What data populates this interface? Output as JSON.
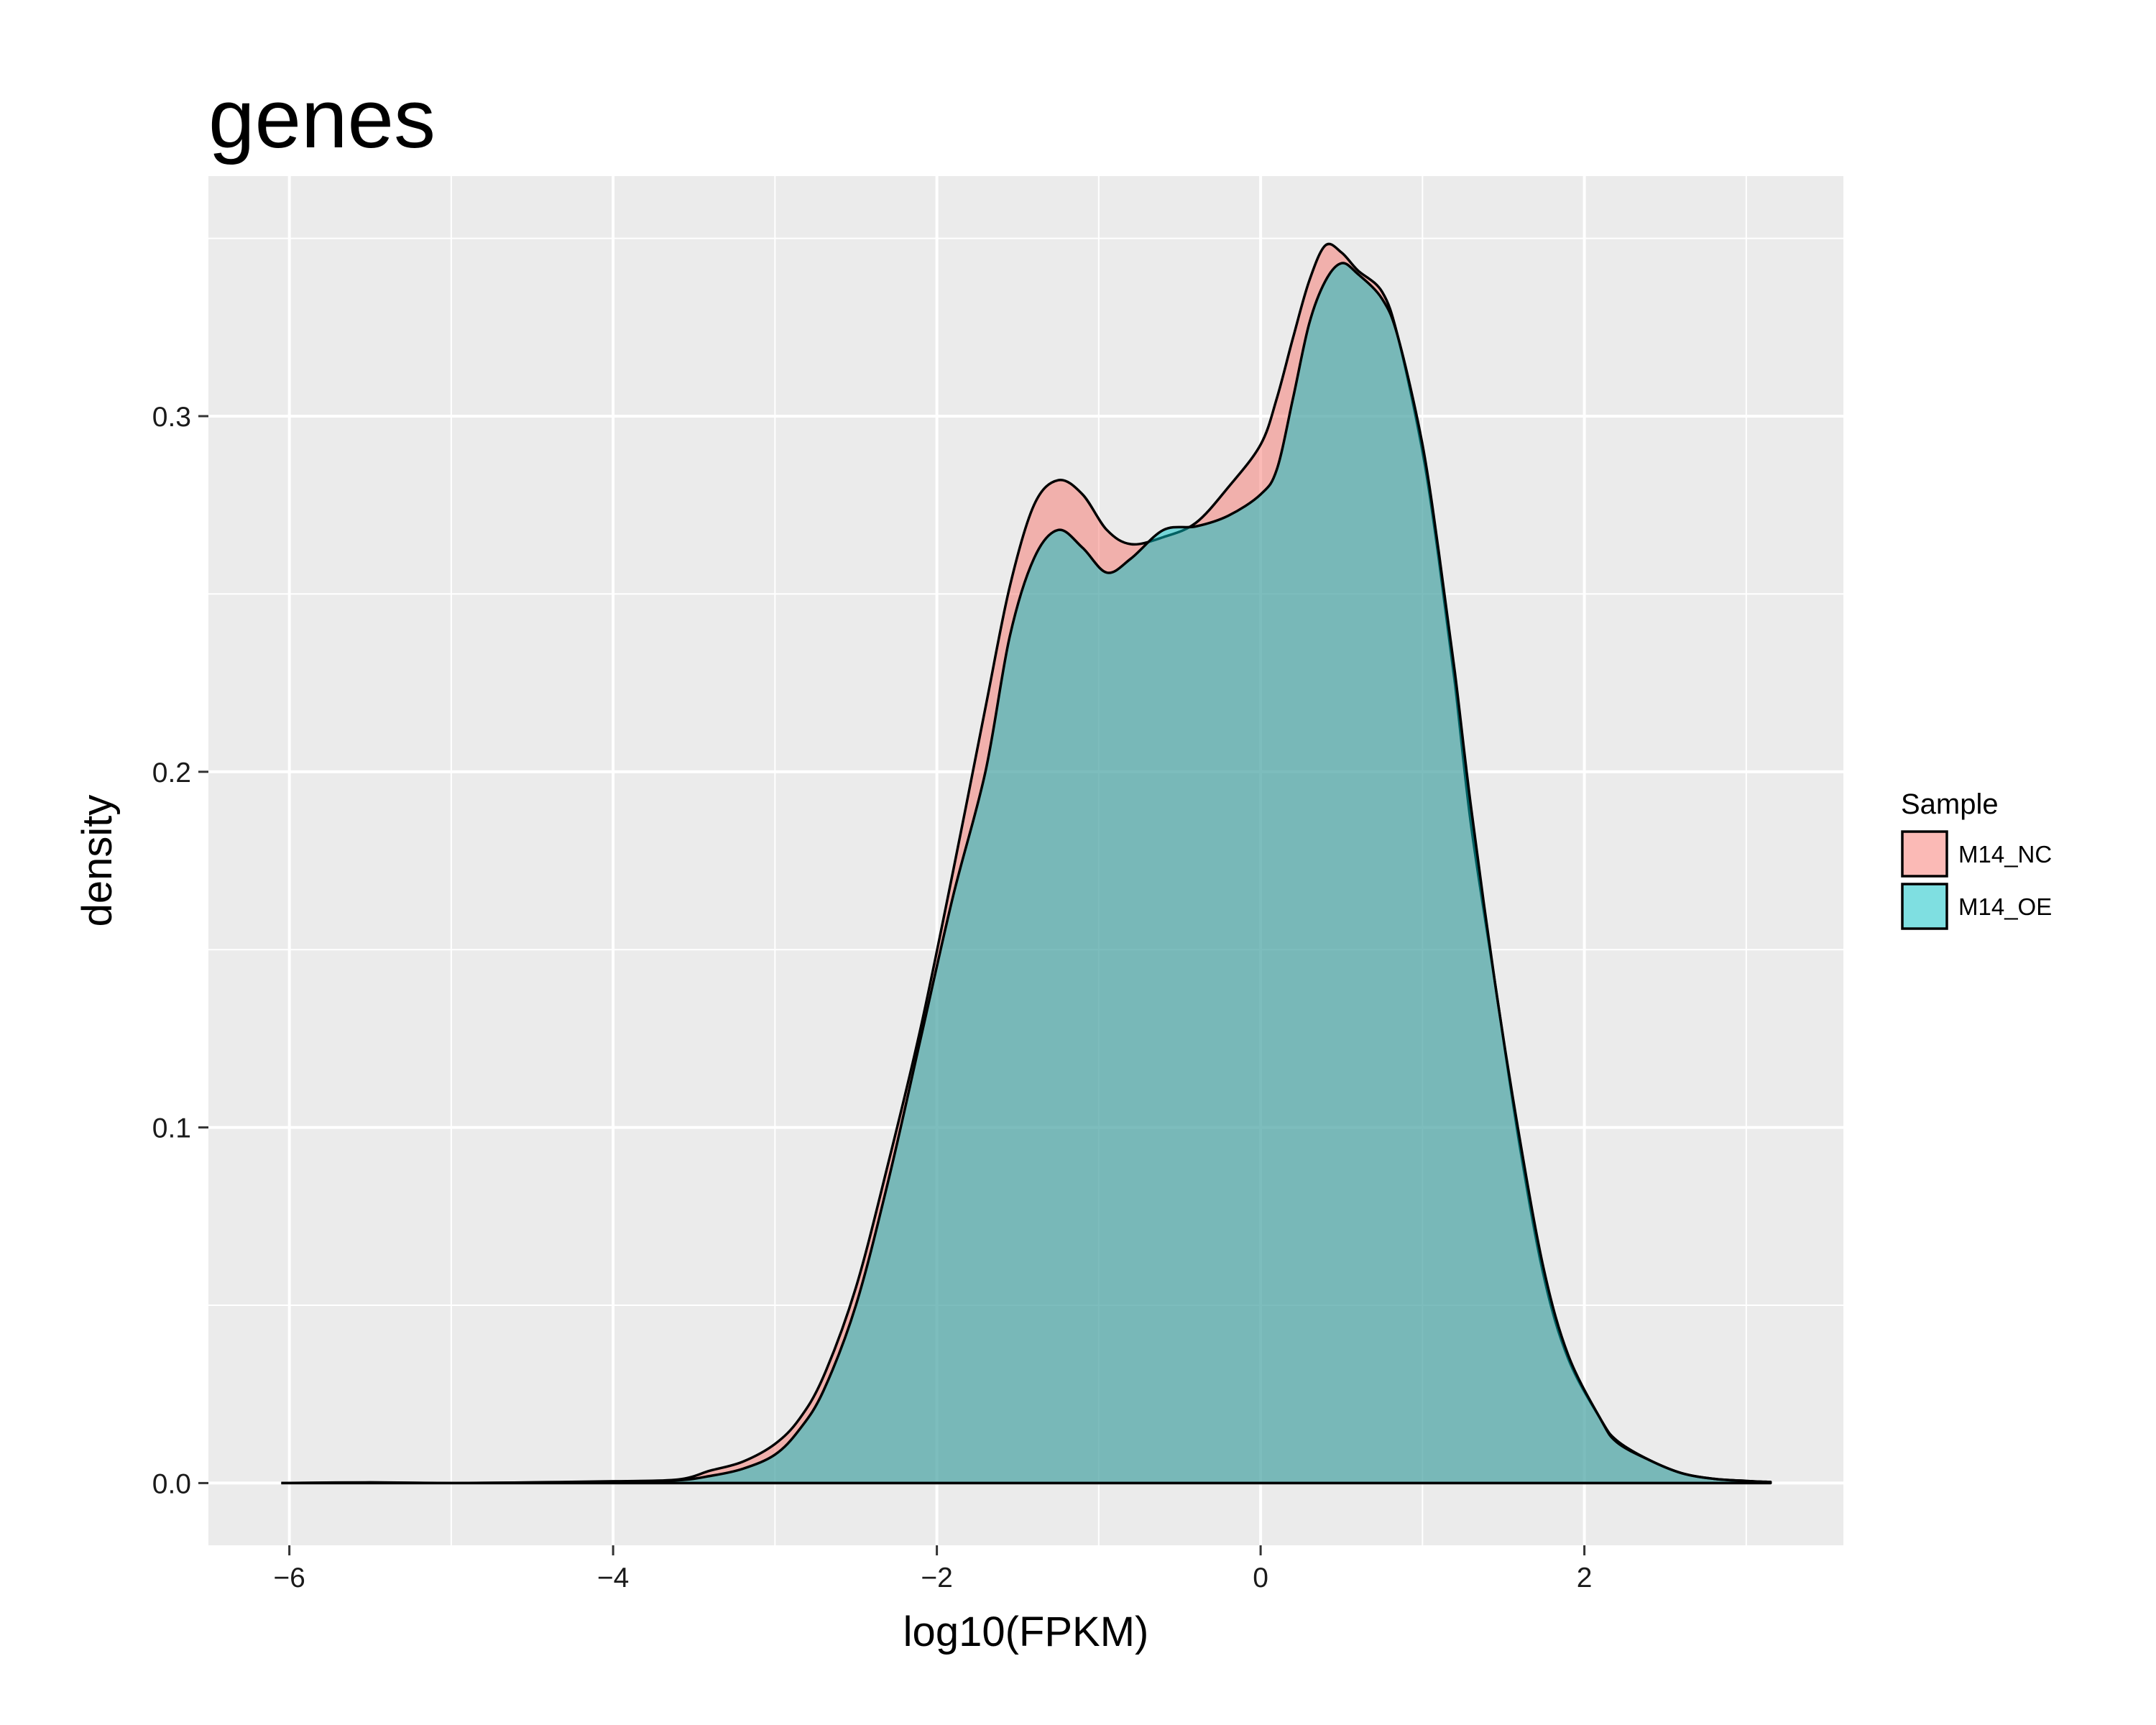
{
  "chart_data": {
    "type": "area",
    "title": "genes",
    "xlabel": "log10(FPKM)",
    "ylabel": "density",
    "xlim": [
      -6.5,
      3.6
    ],
    "ylim": [
      -0.0175,
      0.3675
    ],
    "x_ticks": [
      -6,
      -4,
      -2,
      0,
      2
    ],
    "x_tick_labels": [
      "−6",
      "−4",
      "−2",
      "0",
      "2"
    ],
    "y_ticks": [
      0.0,
      0.1,
      0.2,
      0.3
    ],
    "y_tick_labels": [
      "0.0",
      "0.1",
      "0.2",
      "0.3"
    ],
    "grid": true,
    "legend": {
      "title": "Sample",
      "position": "right"
    },
    "colors": {
      "panel_background": "#EBEBEB",
      "grid": "#FFFFFF",
      "outline": "#000000"
    },
    "series": [
      {
        "name": "M14_NC",
        "fill": "#F8766D",
        "fill_opacity": 0.5,
        "points": [
          [
            -6.05,
            0.0
          ],
          [
            -5.5,
            0.0002
          ],
          [
            -5.0,
            0.0
          ],
          [
            -4.5,
            0.0002
          ],
          [
            -4.0,
            0.0005
          ],
          [
            -3.6,
            0.001
          ],
          [
            -3.4,
            0.0035
          ],
          [
            -3.2,
            0.006
          ],
          [
            -3.0,
            0.011
          ],
          [
            -2.85,
            0.018
          ],
          [
            -2.7,
            0.03
          ],
          [
            -2.5,
            0.055
          ],
          [
            -2.3,
            0.09
          ],
          [
            -2.1,
            0.128
          ],
          [
            -1.9,
            0.172
          ],
          [
            -1.7,
            0.218
          ],
          [
            -1.55,
            0.252
          ],
          [
            -1.4,
            0.275
          ],
          [
            -1.25,
            0.282
          ],
          [
            -1.1,
            0.278
          ],
          [
            -0.95,
            0.268
          ],
          [
            -0.8,
            0.264
          ],
          [
            -0.6,
            0.266
          ],
          [
            -0.4,
            0.27
          ],
          [
            -0.2,
            0.28
          ],
          [
            0.0,
            0.292
          ],
          [
            0.1,
            0.305
          ],
          [
            0.2,
            0.322
          ],
          [
            0.3,
            0.338
          ],
          [
            0.4,
            0.348
          ],
          [
            0.5,
            0.346
          ],
          [
            0.6,
            0.341
          ],
          [
            0.75,
            0.335
          ],
          [
            0.85,
            0.322
          ],
          [
            1.0,
            0.29
          ],
          [
            1.1,
            0.26
          ],
          [
            1.2,
            0.225
          ],
          [
            1.3,
            0.185
          ],
          [
            1.45,
            0.14
          ],
          [
            1.6,
            0.095
          ],
          [
            1.75,
            0.058
          ],
          [
            1.9,
            0.035
          ],
          [
            2.1,
            0.018
          ],
          [
            2.2,
            0.012
          ],
          [
            2.4,
            0.0065
          ],
          [
            2.6,
            0.0028
          ],
          [
            2.8,
            0.0012
          ],
          [
            3.0,
            0.0006
          ],
          [
            3.15,
            0.0003
          ]
        ]
      },
      {
        "name": "M14_OE",
        "fill": "#00BFC4",
        "fill_opacity": 0.5,
        "points": [
          [
            -6.05,
            0.0
          ],
          [
            -5.5,
            0.0001
          ],
          [
            -5.0,
            0.0
          ],
          [
            -4.5,
            0.0001
          ],
          [
            -4.0,
            0.0004
          ],
          [
            -3.6,
            0.0008
          ],
          [
            -3.4,
            0.002
          ],
          [
            -3.2,
            0.004
          ],
          [
            -3.0,
            0.008
          ],
          [
            -2.85,
            0.015
          ],
          [
            -2.7,
            0.026
          ],
          [
            -2.5,
            0.05
          ],
          [
            -2.3,
            0.085
          ],
          [
            -2.1,
            0.125
          ],
          [
            -1.9,
            0.165
          ],
          [
            -1.7,
            0.2
          ],
          [
            -1.55,
            0.238
          ],
          [
            -1.4,
            0.26
          ],
          [
            -1.25,
            0.268
          ],
          [
            -1.1,
            0.263
          ],
          [
            -0.95,
            0.256
          ],
          [
            -0.8,
            0.26
          ],
          [
            -0.6,
            0.268
          ],
          [
            -0.4,
            0.269
          ],
          [
            -0.2,
            0.272
          ],
          [
            0.0,
            0.278
          ],
          [
            0.1,
            0.285
          ],
          [
            0.2,
            0.305
          ],
          [
            0.3,
            0.326
          ],
          [
            0.4,
            0.338
          ],
          [
            0.5,
            0.343
          ],
          [
            0.6,
            0.34
          ],
          [
            0.75,
            0.333
          ],
          [
            0.85,
            0.322
          ],
          [
            1.0,
            0.292
          ],
          [
            1.1,
            0.262
          ],
          [
            1.2,
            0.228
          ],
          [
            1.3,
            0.19
          ],
          [
            1.45,
            0.14
          ],
          [
            1.6,
            0.097
          ],
          [
            1.75,
            0.06
          ],
          [
            1.9,
            0.036
          ],
          [
            2.1,
            0.018
          ],
          [
            2.2,
            0.0115
          ],
          [
            2.4,
            0.0065
          ],
          [
            2.6,
            0.0028
          ],
          [
            2.8,
            0.0012
          ],
          [
            3.0,
            0.0006
          ],
          [
            3.15,
            0.0003
          ]
        ]
      }
    ]
  }
}
